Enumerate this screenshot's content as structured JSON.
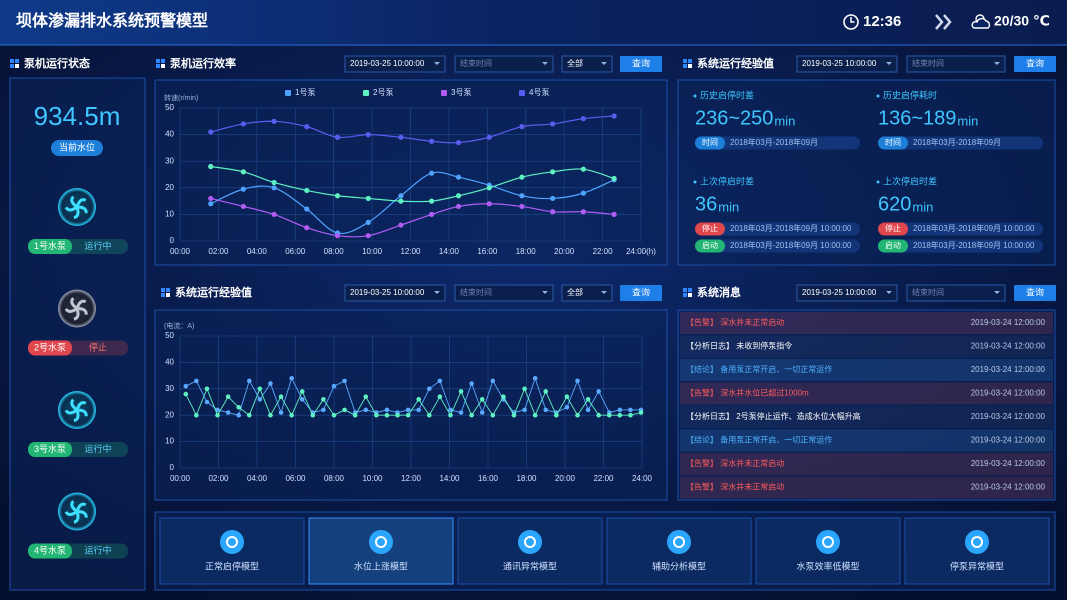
{
  "header": {
    "title": "坝体渗漏排水系统预警模型",
    "time": "12:36",
    "weather": "20/30 ℃"
  },
  "pump_status": {
    "title": "泵机运行状态",
    "level": "934.5m",
    "level_label": "当前水位",
    "pumps": [
      {
        "name": "1号水泵",
        "status": "运行中",
        "color": "#22b573"
      },
      {
        "name": "2号水泵",
        "status": "停止",
        "color": "#e0474c"
      },
      {
        "name": "3号水泵",
        "status": "运行中",
        "color": "#22b573"
      },
      {
        "name": "4号水泵",
        "status": "运行中",
        "color": "#22b573"
      }
    ]
  },
  "efficiency": {
    "title": "泵机运行效率",
    "filters": {
      "start": "2019-03-25 10:00:00",
      "end": "结束时间",
      "select": "全部",
      "button": "查询"
    },
    "chart": {
      "type": "line",
      "smooth": true,
      "grid": true,
      "y_label": "转速(r/min)",
      "ylim": [
        0,
        50
      ],
      "yticks": [
        0,
        10,
        20,
        30,
        40,
        50
      ],
      "xlim": [
        0,
        24
      ],
      "xticks": [
        {
          "value": 0,
          "label": "00:00"
        },
        {
          "value": 2,
          "label": "02:00"
        },
        {
          "value": 4,
          "label": "04:00"
        },
        {
          "value": 6,
          "label": "06:00"
        },
        {
          "value": 8,
          "label": "08:00"
        },
        {
          "value": 10,
          "label": "10:00"
        },
        {
          "value": 12,
          "label": "12:00"
        },
        {
          "value": 14,
          "label": "14:00"
        },
        {
          "value": 16,
          "label": "16:00"
        },
        {
          "value": 18,
          "label": "18:00"
        },
        {
          "value": 20,
          "label": "20:00"
        },
        {
          "value": 22,
          "label": "22:00"
        },
        {
          "value": 24,
          "label": "24:00(h)"
        }
      ],
      "x": [
        1.6,
        3.3,
        4.9,
        6.6,
        8.2,
        9.8,
        11.5,
        13.1,
        14.5,
        16.1,
        17.8,
        19.4,
        21.0,
        22.6
      ],
      "series": [
        {
          "name": "1号泵",
          "color": "#4fa3ff",
          "values": [
            14,
            19.5,
            20,
            12,
            3,
            7,
            17,
            25.5,
            24,
            21,
            17,
            16,
            18,
            23
          ]
        },
        {
          "name": "2号泵",
          "color": "#5ef2c2",
          "values": [
            28,
            26,
            22,
            19,
            17,
            16,
            15,
            15,
            17,
            20,
            24,
            26,
            27,
            23.5
          ]
        },
        {
          "name": "3号泵",
          "color": "#b15cf5",
          "values": [
            16,
            13,
            10,
            5,
            2,
            2,
            6,
            10,
            13,
            14,
            13,
            11,
            11,
            10
          ]
        },
        {
          "name": "4号泵",
          "color": "#5a5cf0",
          "values": [
            41,
            44,
            45,
            43,
            39,
            40,
            39,
            37.5,
            37,
            39,
            43,
            44,
            46,
            47
          ]
        }
      ]
    }
  },
  "experience": {
    "title": "系统运行经验值",
    "filters": {
      "start": "2019-03-25 10:00:00",
      "end": "结束时间",
      "button": "查询"
    },
    "items": [
      {
        "label": "历史启停时差",
        "value": "236~250",
        "unit": "min",
        "tags": [
          {
            "tag": "时间",
            "text": "2018年03月-2018年09月",
            "color": "#1e7fd8"
          }
        ]
      },
      {
        "label": "历史启停耗时",
        "value": "136~189",
        "unit": "min",
        "tags": [
          {
            "tag": "时间",
            "text": "2018年03月-2018年09月",
            "color": "#1e7fd8"
          }
        ]
      },
      {
        "label": "上次停启时差",
        "value": "36",
        "unit": "min",
        "tags": [
          {
            "tag": "停止",
            "text": "2018年03月-2018年09月 10:00:00",
            "color": "#e0474c"
          },
          {
            "tag": "启动",
            "text": "2018年03月-2018年09月 10:00:00",
            "color": "#22b573"
          }
        ]
      },
      {
        "label": "上次停启时差",
        "value": "620",
        "unit": "min",
        "tags": [
          {
            "tag": "停止",
            "text": "2018年03月-2018年09月 10:00:00",
            "color": "#e0474c"
          },
          {
            "tag": "启动",
            "text": "2018年03月-2018年09月 10:00:00",
            "color": "#22b573"
          }
        ]
      }
    ]
  },
  "current": {
    "title": "系统运行经验值",
    "filters": {
      "start": "2019-03-25 10:00:00",
      "end": "结束时间",
      "select": "全部",
      "button": "查询"
    },
    "chart": {
      "type": "line",
      "smooth": false,
      "grid": true,
      "y_label": "(电流：A)",
      "ylim": [
        0,
        50
      ],
      "yticks": [
        0,
        10,
        20,
        30,
        40,
        50
      ],
      "xlim": [
        0,
        24
      ],
      "xticks": [
        {
          "value": 0,
          "label": "00:00"
        },
        {
          "value": 2,
          "label": "02:00"
        },
        {
          "value": 4,
          "label": "04:00"
        },
        {
          "value": 6,
          "label": "06:00"
        },
        {
          "value": 8,
          "label": "08:00"
        },
        {
          "value": 10,
          "label": "10:00"
        },
        {
          "value": 12,
          "label": "12:00"
        },
        {
          "value": 14,
          "label": "14:00"
        },
        {
          "value": 16,
          "label": "16:00"
        },
        {
          "value": 18,
          "label": "18:00"
        },
        {
          "value": 20,
          "label": "20:00"
        },
        {
          "value": 22,
          "label": "22:00"
        },
        {
          "value": 24,
          "label": "24:00"
        }
      ],
      "x": [
        0.3,
        0.85,
        1.4,
        1.95,
        2.5,
        3.05,
        3.6,
        4.15,
        4.7,
        5.25,
        5.8,
        6.35,
        6.9,
        7.45,
        8.0,
        8.55,
        9.1,
        9.65,
        10.2,
        10.75,
        11.3,
        11.85,
        12.4,
        12.95,
        13.5,
        14.05,
        14.6,
        15.15,
        15.7,
        16.25,
        16.8,
        17.35,
        17.9,
        18.45,
        19.0,
        19.55,
        20.1,
        20.65,
        21.2,
        21.75,
        22.3,
        22.85,
        23.4,
        23.95
      ],
      "series": [
        {
          "color": "#5aa8ff",
          "values": [
            31,
            33,
            25,
            22,
            21,
            20,
            33,
            26,
            32,
            21,
            34,
            26,
            21,
            22,
            31,
            33,
            21,
            22,
            21,
            22,
            21,
            22,
            22,
            30,
            33,
            22,
            21,
            32,
            21,
            33,
            26,
            21,
            22,
            34,
            22,
            21,
            23,
            33,
            22,
            29,
            21,
            22,
            22,
            22
          ]
        },
        {
          "color": "#5ef2c2",
          "values": [
            28,
            20,
            30,
            20,
            27,
            23,
            20,
            30,
            20,
            27,
            20,
            29,
            20,
            26,
            20,
            22,
            20,
            27,
            20,
            20,
            20,
            20,
            26,
            20,
            27,
            20,
            29,
            20,
            26,
            20,
            27,
            20,
            30,
            20,
            29,
            20,
            27,
            20,
            26,
            20,
            20,
            20,
            20,
            21
          ]
        }
      ]
    }
  },
  "messages": {
    "title": "系统消息",
    "filters": {
      "start": "2019-03-25 10:00:00",
      "end": "结束时间",
      "button": "查询"
    },
    "rows": [
      {
        "text": "【告警】 深水井未正常启动",
        "time": "2019-03-24 12:00:00",
        "color": "#ff5a5a"
      },
      {
        "text": "【分析日志】 未收到停泵指令",
        "time": "2019-03-24 12:00:00",
        "color": "#ffffff"
      },
      {
        "text": "【结论】 备用泵正常开启、一切正常运作",
        "time": "2019-03-24 12:00:00",
        "color": "#4fb0ff"
      },
      {
        "text": "【告警】 深水井水位已超过1000m",
        "time": "2019-03-24 12:00:00",
        "color": "#ff5a5a"
      },
      {
        "text": "【分析日志】 2号泵停止运作、造成水位大幅升高",
        "time": "2019-03-24 12:00:00",
        "color": "#ffffff"
      },
      {
        "text": "【结论】 备用泵正常开启、一切正常运作",
        "time": "2019-03-24 12:00:00",
        "color": "#4fb0ff"
      },
      {
        "text": "【告警】 深水井未正常启动",
        "time": "2019-03-24 12:00:00",
        "color": "#ff5a5a"
      },
      {
        "text": "【告警】 深水井未正常启动",
        "time": "2019-03-24 12:00:00",
        "color": "#ff5a5a"
      }
    ]
  },
  "modules": [
    {
      "label": "正常启停模型"
    },
    {
      "label": "水位上涨模型",
      "active": true
    },
    {
      "label": "通讯异常模型"
    },
    {
      "label": "辅助分析模型"
    },
    {
      "label": "水泵效率低模型"
    },
    {
      "label": "停泵异常模型"
    }
  ]
}
